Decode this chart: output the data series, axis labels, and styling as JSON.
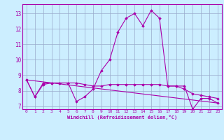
{
  "xlabel": "Windchill (Refroidissement éolien,°C)",
  "bg_color": "#cceeff",
  "line_color": "#aa00aa",
  "grid_color": "#99aacc",
  "xlim": [
    -0.5,
    23.5
  ],
  "ylim": [
    6.8,
    13.6
  ],
  "yticks": [
    7,
    8,
    9,
    10,
    11,
    12,
    13
  ],
  "xticks": [
    0,
    1,
    2,
    3,
    4,
    5,
    6,
    7,
    8,
    9,
    10,
    11,
    12,
    13,
    14,
    15,
    16,
    17,
    18,
    19,
    20,
    21,
    22,
    23
  ],
  "series": [
    {
      "x": [
        0,
        1,
        2,
        3,
        4,
        5,
        6,
        7,
        8,
        9,
        10,
        11,
        12,
        13,
        14,
        15,
        16,
        17,
        18,
        19,
        20,
        21,
        22,
        23
      ],
      "y": [
        8.7,
        7.6,
        8.5,
        8.5,
        8.5,
        8.5,
        7.3,
        7.6,
        8.1,
        9.3,
        10.0,
        11.8,
        12.7,
        13.0,
        12.2,
        13.2,
        12.7,
        8.3,
        8.3,
        8.3,
        6.8,
        7.5,
        7.5,
        7.2
      ],
      "has_markers": true
    },
    {
      "x": [
        0,
        1,
        2,
        3,
        4,
        5,
        6,
        7,
        8,
        9,
        10,
        11,
        12,
        13,
        14,
        15,
        16,
        17,
        18,
        19,
        20,
        21,
        22,
        23
      ],
      "y": [
        8.7,
        7.6,
        8.4,
        8.5,
        8.5,
        8.5,
        8.5,
        8.4,
        8.3,
        8.3,
        8.4,
        8.4,
        8.4,
        8.4,
        8.4,
        8.4,
        8.4,
        8.3,
        8.3,
        8.1,
        7.8,
        7.7,
        7.6,
        7.5
      ],
      "has_markers": true
    },
    {
      "x": [
        0,
        23
      ],
      "y": [
        8.7,
        7.2
      ],
      "has_markers": false
    }
  ]
}
